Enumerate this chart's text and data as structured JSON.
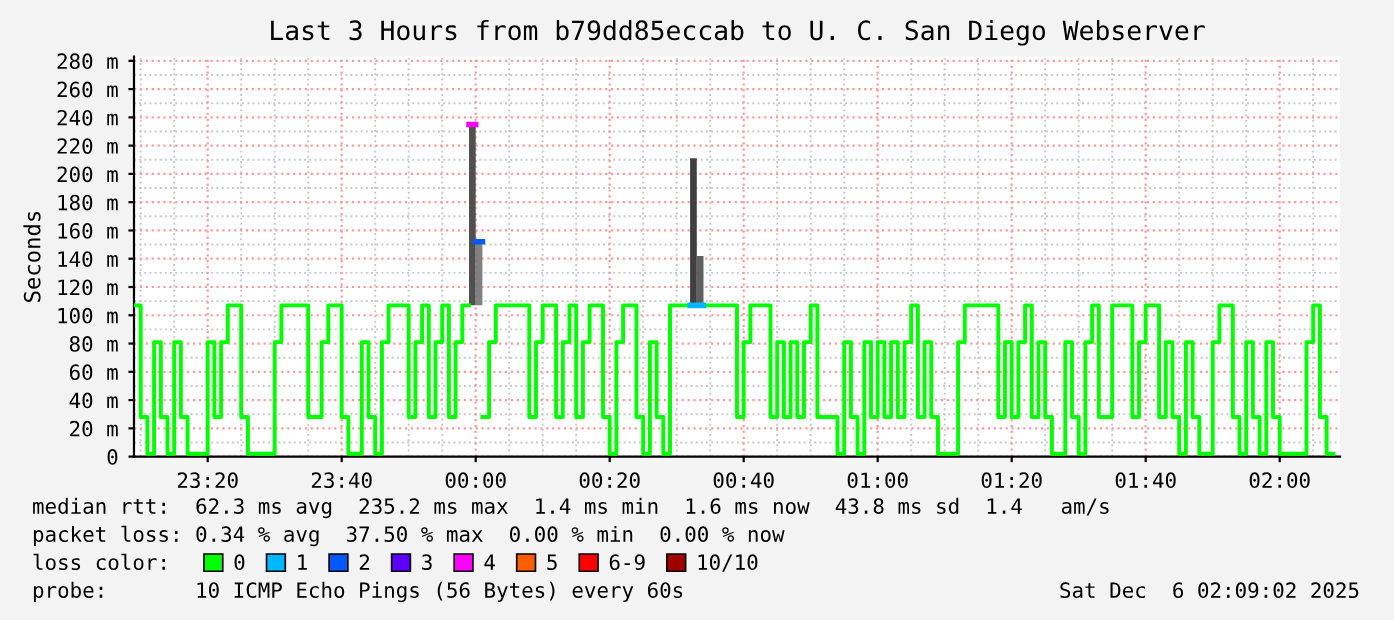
{
  "chart_data": {
    "type": "step",
    "title": "Last 3 Hours from b79dd85eccab to U. C. San Diego Webserver",
    "ylabel": "Seconds",
    "legend_title": "loss color:",
    "legend": "bottom",
    "xlim": [
      "2025-12-05T23:09",
      "2025-12-06T02:09"
    ],
    "xticks": [
      {
        "value": "2025-12-05T23:20",
        "label": "23:20"
      },
      {
        "value": "2025-12-05T23:40",
        "label": "23:40"
      },
      {
        "value": "2025-12-06T00:00",
        "label": "00:00"
      },
      {
        "value": "2025-12-06T00:20",
        "label": "00:20"
      },
      {
        "value": "2025-12-06T00:40",
        "label": "00:40"
      },
      {
        "value": "2025-12-06T01:00",
        "label": "01:00"
      },
      {
        "value": "2025-12-06T01:20",
        "label": "01:20"
      },
      {
        "value": "2025-12-06T01:40",
        "label": "01:40"
      },
      {
        "value": "2025-12-06T02:00",
        "label": "02:00"
      }
    ],
    "ylim": [
      0,
      283
    ],
    "yticks": [
      0,
      {
        "value": 20,
        "label": "20 m"
      },
      {
        "value": 40,
        "label": "40 m"
      },
      {
        "value": 60,
        "label": "60 m"
      },
      {
        "value": 80,
        "label": "80 m"
      },
      {
        "value": 100,
        "label": "100 m"
      },
      {
        "value": 120,
        "label": "120 m"
      },
      {
        "value": 140,
        "label": "140 m"
      },
      {
        "value": 160,
        "label": "160 m"
      },
      {
        "value": 180,
        "label": "180 m"
      },
      {
        "value": 200,
        "label": "200 m"
      },
      {
        "value": 220,
        "label": "220 m"
      },
      {
        "value": 240,
        "label": "240 m"
      },
      {
        "value": 260,
        "label": "260 m"
      },
      {
        "value": 280,
        "label": "280 m"
      }
    ],
    "grid": true,
    "x": [
      "2025-12-05T23:09",
      "2025-12-05T23:10",
      "2025-12-05T23:11",
      "2025-12-05T23:12",
      "2025-12-05T23:13",
      "2025-12-05T23:14",
      "2025-12-05T23:15",
      "2025-12-05T23:16",
      "2025-12-05T23:17",
      "2025-12-05T23:20",
      "2025-12-05T23:21",
      "2025-12-05T23:22",
      "2025-12-05T23:23",
      "2025-12-05T23:25",
      "2025-12-05T23:26",
      "2025-12-05T23:30",
      "2025-12-05T23:31",
      "2025-12-05T23:35",
      "2025-12-05T23:37",
      "2025-12-05T23:38",
      "2025-12-05T23:40",
      "2025-12-05T23:41",
      "2025-12-05T23:43",
      "2025-12-05T23:44",
      "2025-12-05T23:45",
      "2025-12-05T23:46",
      "2025-12-05T23:47",
      "2025-12-05T23:50",
      "2025-12-05T23:51",
      "2025-12-05T23:52",
      "2025-12-05T23:53",
      "2025-12-05T23:54",
      "2025-12-05T23:55",
      "2025-12-05T23:56",
      "2025-12-05T23:57",
      "2025-12-05T23:58",
      "2025-12-05T23:59",
      "2025-12-06T00:00",
      "2025-12-06T00:01",
      "2025-12-06T00:02",
      "2025-12-06T00:03",
      "2025-12-06T00:08",
      "2025-12-06T00:09",
      "2025-12-06T00:10",
      "2025-12-06T00:12",
      "2025-12-06T00:13",
      "2025-12-06T00:14",
      "2025-12-06T00:15",
      "2025-12-06T00:16",
      "2025-12-06T00:17",
      "2025-12-06T00:19",
      "2025-12-06T00:20",
      "2025-12-06T00:21",
      "2025-12-06T00:22",
      "2025-12-06T00:24",
      "2025-12-06T00:25",
      "2025-12-06T00:26",
      "2025-12-06T00:27",
      "2025-12-06T00:28",
      "2025-12-06T00:29",
      "2025-12-06T00:32",
      "2025-12-06T00:34",
      "2025-12-06T00:39",
      "2025-12-06T00:40",
      "2025-12-06T00:41",
      "2025-12-06T00:44",
      "2025-12-06T00:45",
      "2025-12-06T00:46",
      "2025-12-06T00:47",
      "2025-12-06T00:48",
      "2025-12-06T00:49",
      "2025-12-06T00:50",
      "2025-12-06T00:51",
      "2025-12-06T00:54",
      "2025-12-06T00:55",
      "2025-12-06T00:56",
      "2025-12-06T00:57",
      "2025-12-06T00:58",
      "2025-12-06T00:59",
      "2025-12-06T01:00",
      "2025-12-06T01:01",
      "2025-12-06T01:02",
      "2025-12-06T01:03",
      "2025-12-06T01:04",
      "2025-12-06T01:05",
      "2025-12-06T01:06",
      "2025-12-06T01:07",
      "2025-12-06T01:08",
      "2025-12-06T01:09",
      "2025-12-06T01:12",
      "2025-12-06T01:13",
      "2025-12-06T01:18",
      "2025-12-06T01:19",
      "2025-12-06T01:20",
      "2025-12-06T01:21",
      "2025-12-06T01:22",
      "2025-12-06T01:23",
      "2025-12-06T01:24",
      "2025-12-06T01:25",
      "2025-12-06T01:26",
      "2025-12-06T01:28",
      "2025-12-06T01:29",
      "2025-12-06T01:30",
      "2025-12-06T01:31",
      "2025-12-06T01:32",
      "2025-12-06T01:33",
      "2025-12-06T01:35",
      "2025-12-06T01:38",
      "2025-12-06T01:39",
      "2025-12-06T01:40",
      "2025-12-06T01:42",
      "2025-12-06T01:43",
      "2025-12-06T01:44",
      "2025-12-06T01:45",
      "2025-12-06T01:46",
      "2025-12-06T01:47",
      "2025-12-06T01:48",
      "2025-12-06T01:50",
      "2025-12-06T01:51",
      "2025-12-06T01:53",
      "2025-12-06T01:54",
      "2025-12-06T01:55",
      "2025-12-06T01:56",
      "2025-12-06T01:57",
      "2025-12-06T01:58",
      "2025-12-06T01:59",
      "2025-12-06T02:00",
      "2025-12-06T02:04",
      "2025-12-06T02:05",
      "2025-12-06T02:06",
      "2025-12-06T02:07",
      "2025-12-06T02:08"
    ],
    "series": [
      {
        "type": "bar",
        "x": [
          "2025-12-05T23:59",
          "2025-12-06T00:00",
          "2025-12-06T00:32",
          "2025-12-06T00:33"
        ],
        "base": [
          107,
          107,
          107,
          107
        ],
        "values": [
          128,
          45,
          104,
          35
        ],
        "colors": [
          "#505050",
          "#808080",
          "#404040",
          "#606060"
        ]
      },
      {
        "name": "0",
        "color": "#00ff00",
        "values": [
          107,
          28,
          2,
          81,
          28,
          2,
          81,
          28,
          2,
          81,
          28,
          81,
          107,
          28,
          2,
          81,
          107,
          28,
          81,
          107,
          28,
          2,
          81,
          28,
          2,
          81,
          107,
          28,
          81,
          107,
          28,
          81,
          107,
          28,
          81,
          107,
          null,
          null,
          28,
          81,
          107,
          28,
          81,
          107,
          28,
          81,
          107,
          28,
          81,
          107,
          28,
          2,
          81,
          107,
          28,
          2,
          81,
          28,
          2,
          107,
          null,
          107,
          28,
          81,
          107,
          28,
          81,
          28,
          81,
          28,
          81,
          107,
          28,
          2,
          81,
          28,
          2,
          81,
          28,
          81,
          28,
          81,
          28,
          81,
          107,
          28,
          81,
          28,
          2,
          81,
          107,
          28,
          81,
          28,
          81,
          107,
          28,
          81,
          28,
          2,
          81,
          28,
          2,
          81,
          107,
          28,
          107,
          28,
          81,
          107,
          28,
          81,
          28,
          2,
          81,
          28,
          2,
          81,
          107,
          28,
          2,
          81,
          28,
          2,
          81,
          28,
          2,
          81,
          107,
          28,
          2,
          2
        ]
      },
      {
        "name": "1",
        "type": "line",
        "color": "#00b8ff",
        "x": [
          "2025-12-06T00:32",
          "2025-12-06T00:34"
        ],
        "values": [
          107,
          107
        ]
      },
      {
        "name": "2",
        "type": "line",
        "color": "#0059ff",
        "x": [
          "2025-12-06T00:00",
          "2025-12-06T00:01"
        ],
        "values": [
          152,
          152
        ]
      },
      {
        "name": "3",
        "color": "#5e00ff",
        "values": [
          null,
          null,
          null,
          null,
          null,
          null,
          null,
          null,
          null,
          null,
          null,
          null,
          null,
          null,
          null,
          null,
          null,
          null,
          null,
          null,
          null,
          null,
          null,
          null,
          null,
          null,
          null,
          null,
          null,
          null,
          null,
          null,
          null,
          null,
          null,
          null,
          null,
          null,
          null,
          null,
          null,
          null,
          null,
          null,
          null,
          null,
          null,
          null,
          null,
          null,
          null,
          null,
          null,
          null,
          null,
          null,
          null,
          null,
          null,
          null,
          null,
          null,
          null,
          null,
          null,
          null,
          null,
          null,
          null,
          null,
          null,
          null,
          null,
          null,
          null,
          null,
          null,
          null,
          null,
          null,
          null,
          null,
          null,
          null,
          null,
          null,
          null,
          null,
          null,
          null,
          null,
          null,
          null,
          null,
          null,
          null,
          null,
          null,
          null,
          null,
          null,
          null,
          null,
          null,
          null,
          null,
          null,
          null,
          null,
          null,
          null,
          null,
          null,
          null,
          null,
          null,
          null,
          null,
          null,
          null,
          null,
          null,
          null,
          null,
          null,
          null,
          null,
          null,
          null,
          null,
          null,
          null
        ]
      },
      {
        "name": "4",
        "type": "line",
        "color": "#ff00ff",
        "x": [
          "2025-12-05T23:59",
          "2025-12-06T00:00"
        ],
        "values": [
          235,
          235
        ]
      },
      {
        "name": "5",
        "color": "#ff5e00",
        "values": [
          null,
          null,
          null,
          null,
          null,
          null,
          null,
          null,
          null,
          null,
          null,
          null,
          null,
          null,
          null,
          null,
          null,
          null,
          null,
          null,
          null,
          null,
          null,
          null,
          null,
          null,
          null,
          null,
          null,
          null,
          null,
          null,
          null,
          null,
          null,
          null,
          null,
          null,
          null,
          null,
          null,
          null,
          null,
          null,
          null,
          null,
          null,
          null,
          null,
          null,
          null,
          null,
          null,
          null,
          null,
          null,
          null,
          null,
          null,
          null,
          null,
          null,
          null,
          null,
          null,
          null,
          null,
          null,
          null,
          null,
          null,
          null,
          null,
          null,
          null,
          null,
          null,
          null,
          null,
          null,
          null,
          null,
          null,
          null,
          null,
          null,
          null,
          null,
          null,
          null,
          null,
          null,
          null,
          null,
          null,
          null,
          null,
          null,
          null,
          null,
          null,
          null,
          null,
          null,
          null,
          null,
          null,
          null,
          null,
          null,
          null,
          null,
          null,
          null,
          null,
          null,
          null,
          null,
          null,
          null,
          null,
          null,
          null,
          null,
          null,
          null,
          null,
          null,
          null,
          null,
          null,
          null
        ]
      },
      {
        "name": "6-9",
        "color": "#ff0000",
        "values": [
          null,
          null,
          null,
          null,
          null,
          null,
          null,
          null,
          null,
          null,
          null,
          null,
          null,
          null,
          null,
          null,
          null,
          null,
          null,
          null,
          null,
          null,
          null,
          null,
          null,
          null,
          null,
          null,
          null,
          null,
          null,
          null,
          null,
          null,
          null,
          null,
          null,
          null,
          null,
          null,
          null,
          null,
          null,
          null,
          null,
          null,
          null,
          null,
          null,
          null,
          null,
          null,
          null,
          null,
          null,
          null,
          null,
          null,
          null,
          null,
          null,
          null,
          null,
          null,
          null,
          null,
          null,
          null,
          null,
          null,
          null,
          null,
          null,
          null,
          null,
          null,
          null,
          null,
          null,
          null,
          null,
          null,
          null,
          null,
          null,
          null,
          null,
          null,
          null,
          null,
          null,
          null,
          null,
          null,
          null,
          null,
          null,
          null,
          null,
          null,
          null,
          null,
          null,
          null,
          null,
          null,
          null,
          null,
          null,
          null,
          null,
          null,
          null,
          null,
          null,
          null,
          null,
          null,
          null,
          null,
          null,
          null,
          null,
          null,
          null,
          null,
          null,
          null,
          null,
          null,
          null,
          null
        ]
      },
      {
        "name": "10/10",
        "color": "#a10000",
        "values": [
          null,
          null,
          null,
          null,
          null,
          null,
          null,
          null,
          null,
          null,
          null,
          null,
          null,
          null,
          null,
          null,
          null,
          null,
          null,
          null,
          null,
          null,
          null,
          null,
          null,
          null,
          null,
          null,
          null,
          null,
          null,
          null,
          null,
          null,
          null,
          null,
          null,
          null,
          null,
          null,
          null,
          null,
          null,
          null,
          null,
          null,
          null,
          null,
          null,
          null,
          null,
          null,
          null,
          null,
          null,
          null,
          null,
          null,
          null,
          null,
          null,
          null,
          null,
          null,
          null,
          null,
          null,
          null,
          null,
          null,
          null,
          null,
          null,
          null,
          null,
          null,
          null,
          null,
          null,
          null,
          null,
          null,
          null,
          null,
          null,
          null,
          null,
          null,
          null,
          null,
          null,
          null,
          null,
          null,
          null,
          null,
          null,
          null,
          null,
          null,
          null,
          null,
          null,
          null,
          null,
          null,
          null,
          null,
          null,
          null,
          null,
          null,
          null,
          null,
          null,
          null,
          null,
          null,
          null,
          null,
          null,
          null,
          null,
          null,
          null,
          null,
          null,
          null,
          null,
          null,
          null,
          null
        ]
      }
    ],
    "annotations": [
      "median rtt:  62.3 ms avg  235.2 ms max  1.4 ms min  1.6 ms now  43.8 ms sd  1.4   am/s",
      "packet loss: 0.34 % avg  37.50 % max  0.00 % min  0.00 % now",
      "probe:       10 ICMP Echo Pings (56 Bytes) every 60s",
      "Sat Dec  6 02:09:02 2025"
    ]
  }
}
